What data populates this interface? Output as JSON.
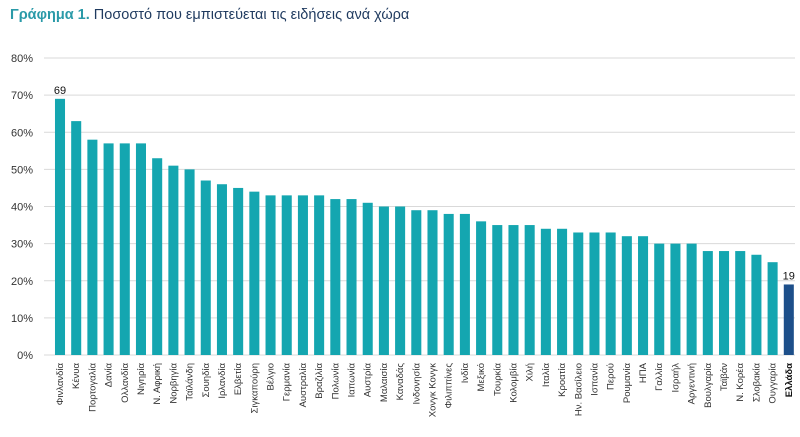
{
  "title": {
    "lead": "Γράφημα 1.",
    "rest": "Ποσοστό που εμπιστεύεται τις ειδήσεις ανά χώρα"
  },
  "colors": {
    "bar": "#14a6b0",
    "highlight": "#1d4f8a",
    "grid": "#d9d9d9",
    "text": "#333333"
  },
  "chart_data": {
    "type": "bar",
    "title": "Ποσοστό που εμπιστεύεται τις ειδήσεις ανά χώρα",
    "xlabel": "",
    "ylabel": "",
    "ylim": [
      0,
      80
    ],
    "yticks": [
      0,
      10,
      20,
      30,
      40,
      50,
      60,
      70,
      80
    ],
    "ytick_suffix": "%",
    "grid": true,
    "categories": [
      "Φινλανδία",
      "Κένυα",
      "Πορτογαλία",
      "Δανία",
      "Ολλανδία",
      "Νιγηρία",
      "Ν. Αφρική",
      "Νορβηγία",
      "Ταϊλάνδη",
      "Σουηδία",
      "Ιρλανδία",
      "Ελβετία",
      "Σιγκαπούρη",
      "Βέλγιο",
      "Γερμανία",
      "Αυστραλία",
      "Βραζιλία",
      "Πολωνία",
      "Ιαπωνία",
      "Αυστρία",
      "Μαλαισία",
      "Καναδάς",
      "Ινδονησία",
      "Χονγκ Κονγκ",
      "Φιλιππίνες",
      "Ινδία",
      "Μεξικό",
      "Τουρκία",
      "Κολομβία",
      "Χιλή",
      "Ιταλία",
      "Κροατία",
      "Ην. Βασίλειο",
      "Ισπανία",
      "Περού",
      "Ρουμανία",
      "ΗΠΑ",
      "Γαλλία",
      "Ισραήλ",
      "Αργεντινή",
      "Βουλγαρία",
      "Ταϊβάν",
      "Ν. Κορέα",
      "Σλοβακία",
      "Ουγγαρία",
      "Ελλάδα"
    ],
    "values": [
      69,
      63,
      58,
      57,
      57,
      57,
      53,
      51,
      50,
      47,
      46,
      45,
      44,
      43,
      43,
      43,
      43,
      42,
      42,
      41,
      40,
      40,
      39,
      39,
      38,
      38,
      36,
      35,
      35,
      35,
      34,
      34,
      33,
      33,
      33,
      32,
      32,
      30,
      30,
      30,
      28,
      28,
      28,
      27,
      25,
      19
    ],
    "data_labels": [
      {
        "index": 0,
        "text": "69"
      },
      {
        "index": 45,
        "text": "19"
      }
    ],
    "highlight_index": 45
  }
}
